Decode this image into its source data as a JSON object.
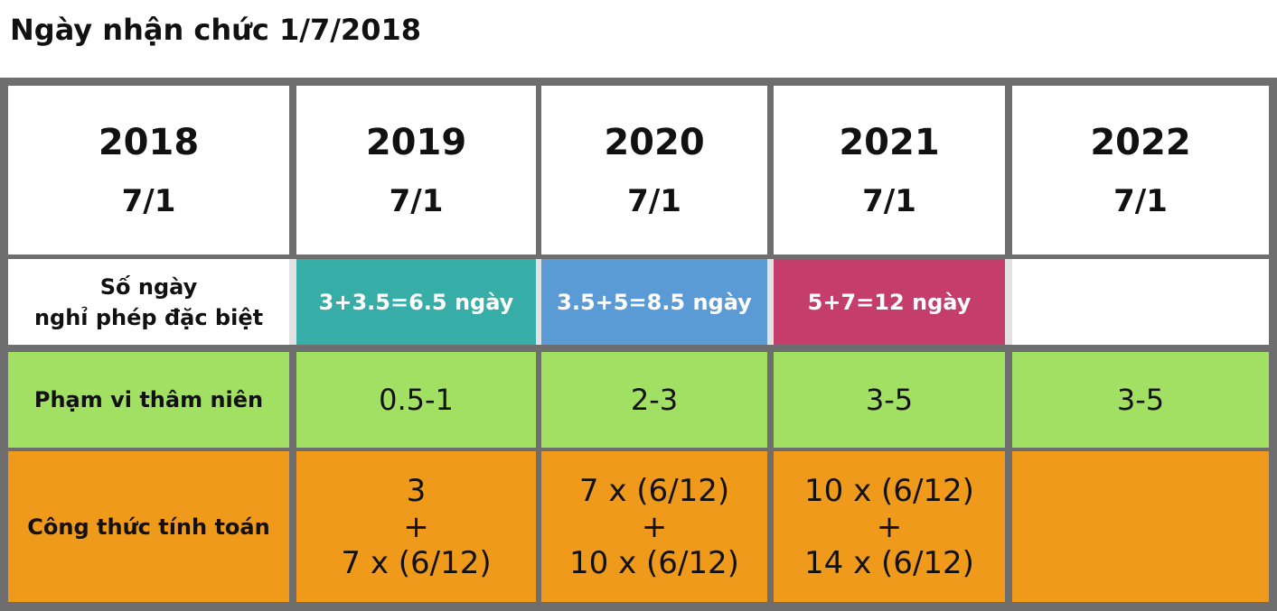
{
  "title": "Ngày nhận chức 1/7/2018",
  "header": [
    {
      "year": "2018",
      "date": "7/1"
    },
    {
      "year": "2019",
      "date": "7/1"
    },
    {
      "year": "2020",
      "date": "7/1"
    },
    {
      "year": "2021",
      "date": "7/1"
    },
    {
      "year": "2022",
      "date": "7/1"
    }
  ],
  "special_leave": {
    "label_line1": "Số ngày",
    "label_line2": "nghỉ phép đặc biệt",
    "values": [
      "3+3.5=6.5 ngày",
      "3.5+5=8.5 ngày",
      "5+7=12 ngày",
      ""
    ],
    "colors": [
      "#36ada6",
      "#5b9bd5",
      "#c43d6b",
      "#ffffff"
    ]
  },
  "seniority": {
    "label": "Phạm vi thâm niên",
    "values": [
      "0.5-1",
      "2-3",
      "3-5",
      "3-5"
    ],
    "color": "#a2e064"
  },
  "formula": {
    "label": "Công thức tính toán",
    "values": [
      [
        "3",
        "+",
        "7 x (6/12)"
      ],
      [
        "7 x (6/12)",
        "+",
        "10 x (6/12)"
      ],
      [
        "10 x (6/12)",
        "+",
        "14 x (6/12)"
      ],
      []
    ],
    "color": "#f09a1c"
  }
}
